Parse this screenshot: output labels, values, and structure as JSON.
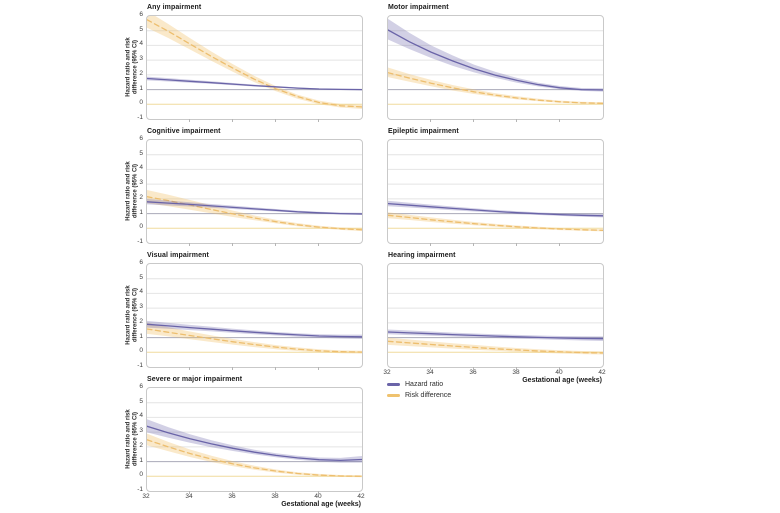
{
  "figure": {
    "ylabel_line1": "Hazard ratio and risk",
    "ylabel_line2": "difference (95% CI)",
    "xlabel": "Gestational age (weeks)",
    "x_ticks": [
      32,
      34,
      36,
      38,
      40,
      42
    ],
    "x_minor_ticks": [
      34,
      36,
      38,
      40
    ],
    "y_ticks": [
      6,
      5,
      4,
      3,
      2,
      1,
      0,
      -1
    ],
    "legend": [
      {
        "label": "Hazard ratio",
        "color": "#6a64a8"
      },
      {
        "label": "Risk difference",
        "color": "#efc26e"
      }
    ]
  },
  "colors": {
    "hazard_ratio": "#6a64a8",
    "hazard_ratio_band": "rgba(106,100,168,0.30)",
    "risk_difference": "#edbe6e",
    "risk_difference_band": "rgba(240,191,102,0.35)",
    "grid": "#e4e4e4",
    "ref_hr_line": "#a9a9b8",
    "ref_rd_line": "#f0dc9e",
    "frame": "#c9c9c9"
  },
  "chart_data": [
    {
      "type": "line",
      "title": "Any impairment",
      "ylim": [
        -1,
        6
      ],
      "xlim": [
        32,
        42
      ],
      "reference_lines": {
        "hazard_ratio": 1,
        "risk_difference": 0
      },
      "x": [
        32,
        33,
        34,
        35,
        36,
        37,
        38,
        39,
        40,
        41,
        42
      ],
      "series": [
        {
          "key": "hazard_ratio",
          "name": "Hazard ratio",
          "values": [
            1.75,
            1.66,
            1.56,
            1.47,
            1.37,
            1.27,
            1.18,
            1.1,
            1.04,
            1.01,
            1.0
          ],
          "ci_lower": [
            1.62,
            1.55,
            1.47,
            1.39,
            1.3,
            1.21,
            1.13,
            1.06,
            1.01,
            0.97,
            0.95
          ],
          "ci_upper": [
            1.88,
            1.78,
            1.67,
            1.56,
            1.45,
            1.34,
            1.24,
            1.15,
            1.08,
            1.05,
            1.05
          ]
        },
        {
          "key": "risk_difference",
          "name": "Risk difference",
          "values": [
            5.75,
            4.95,
            4.1,
            3.25,
            2.45,
            1.7,
            1.05,
            0.52,
            0.12,
            -0.1,
            -0.18
          ],
          "ci_lower": [
            5.2,
            4.5,
            3.72,
            2.95,
            2.2,
            1.5,
            0.88,
            0.38,
            0.0,
            -0.22,
            -0.32
          ],
          "ci_upper": [
            6.35,
            5.45,
            4.5,
            3.58,
            2.72,
            1.92,
            1.22,
            0.66,
            0.25,
            0.02,
            -0.05
          ]
        }
      ]
    },
    {
      "type": "line",
      "title": "Motor impairment",
      "ylim": [
        -1,
        6
      ],
      "xlim": [
        32,
        42
      ],
      "reference_lines": {
        "hazard_ratio": 1,
        "risk_difference": 0
      },
      "x": [
        32,
        33,
        34,
        35,
        36,
        37,
        38,
        39,
        40,
        41,
        42
      ],
      "series": [
        {
          "key": "hazard_ratio",
          "name": "Hazard ratio",
          "values": [
            5.05,
            4.25,
            3.55,
            2.95,
            2.42,
            1.98,
            1.62,
            1.33,
            1.12,
            1.0,
            0.97
          ],
          "ci_lower": [
            4.4,
            3.75,
            3.15,
            2.62,
            2.17,
            1.79,
            1.47,
            1.21,
            1.02,
            0.91,
            0.86
          ],
          "ci_upper": [
            5.8,
            4.85,
            4.0,
            3.32,
            2.7,
            2.2,
            1.79,
            1.47,
            1.24,
            1.11,
            1.09
          ]
        },
        {
          "key": "risk_difference",
          "name": "Risk difference",
          "values": [
            2.15,
            1.78,
            1.43,
            1.12,
            0.85,
            0.62,
            0.43,
            0.28,
            0.17,
            0.1,
            0.07
          ],
          "ci_lower": [
            1.85,
            1.53,
            1.22,
            0.94,
            0.7,
            0.5,
            0.33,
            0.2,
            0.1,
            0.04,
            0.0
          ],
          "ci_upper": [
            2.5,
            2.05,
            1.66,
            1.31,
            1.01,
            0.75,
            0.54,
            0.37,
            0.25,
            0.17,
            0.14
          ]
        }
      ]
    },
    {
      "type": "line",
      "title": "Cognitive impairment",
      "ylim": [
        -1,
        6
      ],
      "xlim": [
        32,
        42
      ],
      "reference_lines": {
        "hazard_ratio": 1,
        "risk_difference": 0
      },
      "x": [
        32,
        33,
        34,
        35,
        36,
        37,
        38,
        39,
        40,
        41,
        42
      ],
      "series": [
        {
          "key": "hazard_ratio",
          "name": "Hazard ratio",
          "values": [
            1.8,
            1.71,
            1.62,
            1.52,
            1.42,
            1.32,
            1.22,
            1.12,
            1.05,
            1.0,
            0.97
          ],
          "ci_lower": [
            1.62,
            1.55,
            1.48,
            1.4,
            1.31,
            1.23,
            1.14,
            1.05,
            0.99,
            0.94,
            0.9
          ],
          "ci_upper": [
            1.99,
            1.88,
            1.77,
            1.65,
            1.54,
            1.42,
            1.31,
            1.2,
            1.12,
            1.07,
            1.05
          ]
        },
        {
          "key": "risk_difference",
          "name": "Risk difference",
          "values": [
            2.15,
            1.88,
            1.58,
            1.28,
            0.98,
            0.7,
            0.45,
            0.24,
            0.08,
            -0.03,
            -0.1
          ],
          "ci_lower": [
            1.7,
            1.5,
            1.26,
            1.01,
            0.77,
            0.54,
            0.33,
            0.14,
            0.0,
            -0.11,
            -0.19
          ],
          "ci_upper": [
            2.6,
            2.28,
            1.92,
            1.56,
            1.2,
            0.87,
            0.58,
            0.35,
            0.17,
            0.05,
            -0.01
          ]
        }
      ]
    },
    {
      "type": "line",
      "title": "Epileptic impairment",
      "ylim": [
        -1,
        6
      ],
      "xlim": [
        32,
        42
      ],
      "reference_lines": {
        "hazard_ratio": 1,
        "risk_difference": 0
      },
      "x": [
        32,
        33,
        34,
        35,
        36,
        37,
        38,
        39,
        40,
        41,
        42
      ],
      "series": [
        {
          "key": "hazard_ratio",
          "name": "Hazard ratio",
          "values": [
            1.68,
            1.57,
            1.46,
            1.35,
            1.25,
            1.15,
            1.06,
            0.99,
            0.93,
            0.88,
            0.85
          ],
          "ci_lower": [
            1.5,
            1.41,
            1.32,
            1.23,
            1.14,
            1.05,
            0.97,
            0.9,
            0.84,
            0.78,
            0.74
          ],
          "ci_upper": [
            1.87,
            1.74,
            1.61,
            1.48,
            1.36,
            1.25,
            1.16,
            1.08,
            1.02,
            0.98,
            0.97
          ]
        },
        {
          "key": "risk_difference",
          "name": "Risk difference",
          "values": [
            0.88,
            0.73,
            0.58,
            0.44,
            0.31,
            0.2,
            0.1,
            0.02,
            -0.05,
            -0.1,
            -0.14
          ],
          "ci_lower": [
            0.68,
            0.56,
            0.43,
            0.31,
            0.2,
            0.1,
            0.01,
            -0.06,
            -0.12,
            -0.17,
            -0.21
          ],
          "ci_upper": [
            1.09,
            0.91,
            0.74,
            0.58,
            0.43,
            0.3,
            0.19,
            0.1,
            0.02,
            -0.03,
            -0.07
          ]
        }
      ]
    },
    {
      "type": "line",
      "title": "Visual impairment",
      "ylim": [
        -1,
        6
      ],
      "xlim": [
        32,
        42
      ],
      "reference_lines": {
        "hazard_ratio": 1,
        "risk_difference": 0
      },
      "x": [
        32,
        33,
        34,
        35,
        36,
        37,
        38,
        39,
        40,
        41,
        42
      ],
      "series": [
        {
          "key": "hazard_ratio",
          "name": "Hazard ratio",
          "values": [
            1.9,
            1.79,
            1.68,
            1.57,
            1.46,
            1.36,
            1.26,
            1.18,
            1.11,
            1.07,
            1.05
          ],
          "ci_lower": [
            1.68,
            1.6,
            1.51,
            1.42,
            1.32,
            1.23,
            1.14,
            1.06,
            0.99,
            0.94,
            0.91
          ],
          "ci_upper": [
            2.13,
            2.0,
            1.86,
            1.73,
            1.6,
            1.49,
            1.38,
            1.3,
            1.23,
            1.2,
            1.2
          ]
        },
        {
          "key": "risk_difference",
          "name": "Risk difference",
          "values": [
            1.58,
            1.36,
            1.14,
            0.92,
            0.71,
            0.52,
            0.35,
            0.21,
            0.1,
            0.04,
            0.01
          ],
          "ci_lower": [
            1.25,
            1.08,
            0.89,
            0.7,
            0.52,
            0.35,
            0.21,
            0.09,
            0.0,
            -0.06,
            -0.09
          ],
          "ci_upper": [
            2.02,
            1.7,
            1.41,
            1.15,
            0.9,
            0.69,
            0.49,
            0.33,
            0.2,
            0.13,
            0.11
          ]
        }
      ]
    },
    {
      "type": "line",
      "title": "Hearing impairment",
      "ylim": [
        -1,
        6
      ],
      "xlim": [
        32,
        42
      ],
      "reference_lines": {
        "hazard_ratio": 1,
        "risk_difference": 0
      },
      "x": [
        32,
        33,
        34,
        35,
        36,
        37,
        38,
        39,
        40,
        41,
        42
      ],
      "series": [
        {
          "key": "hazard_ratio",
          "name": "Hazard ratio",
          "values": [
            1.38,
            1.32,
            1.26,
            1.2,
            1.15,
            1.1,
            1.05,
            1.01,
            0.97,
            0.94,
            0.92
          ],
          "ci_lower": [
            1.22,
            1.17,
            1.12,
            1.07,
            1.02,
            0.97,
            0.93,
            0.88,
            0.84,
            0.8,
            0.77
          ],
          "ci_upper": [
            1.55,
            1.48,
            1.41,
            1.34,
            1.28,
            1.23,
            1.18,
            1.14,
            1.11,
            1.09,
            1.08
          ]
        },
        {
          "key": "risk_difference",
          "name": "Risk difference",
          "values": [
            0.75,
            0.64,
            0.53,
            0.43,
            0.33,
            0.24,
            0.16,
            0.09,
            0.03,
            -0.02,
            -0.05
          ],
          "ci_lower": [
            0.5,
            0.42,
            0.33,
            0.25,
            0.17,
            0.1,
            0.03,
            -0.03,
            -0.08,
            -0.12,
            -0.15
          ],
          "ci_upper": [
            1.0,
            0.87,
            0.74,
            0.62,
            0.5,
            0.39,
            0.29,
            0.21,
            0.14,
            0.09,
            0.05
          ]
        }
      ]
    },
    {
      "type": "line",
      "title": "Severe or major impairment",
      "ylim": [
        -1,
        6
      ],
      "xlim": [
        32,
        42
      ],
      "reference_lines": {
        "hazard_ratio": 1,
        "risk_difference": 0
      },
      "x": [
        32,
        33,
        34,
        35,
        36,
        37,
        38,
        39,
        40,
        41,
        42
      ],
      "series": [
        {
          "key": "hazard_ratio",
          "name": "Hazard ratio",
          "values": [
            3.4,
            2.95,
            2.55,
            2.2,
            1.9,
            1.64,
            1.42,
            1.25,
            1.13,
            1.08,
            1.14
          ],
          "ci_lower": [
            2.98,
            2.62,
            2.28,
            1.98,
            1.72,
            1.49,
            1.29,
            1.13,
            1.0,
            0.93,
            0.94
          ],
          "ci_upper": [
            3.88,
            3.33,
            2.86,
            2.45,
            2.1,
            1.81,
            1.57,
            1.39,
            1.28,
            1.25,
            1.38
          ]
        },
        {
          "key": "risk_difference",
          "name": "Risk difference",
          "values": [
            2.48,
            2.0,
            1.55,
            1.17,
            0.84,
            0.57,
            0.35,
            0.19,
            0.08,
            0.02,
            0.0
          ],
          "ci_lower": [
            2.1,
            1.7,
            1.31,
            0.97,
            0.68,
            0.44,
            0.25,
            0.11,
            0.01,
            -0.04,
            -0.06
          ],
          "ci_upper": [
            2.9,
            2.33,
            1.82,
            1.39,
            1.02,
            0.71,
            0.46,
            0.28,
            0.16,
            0.09,
            0.07
          ]
        }
      ]
    }
  ]
}
